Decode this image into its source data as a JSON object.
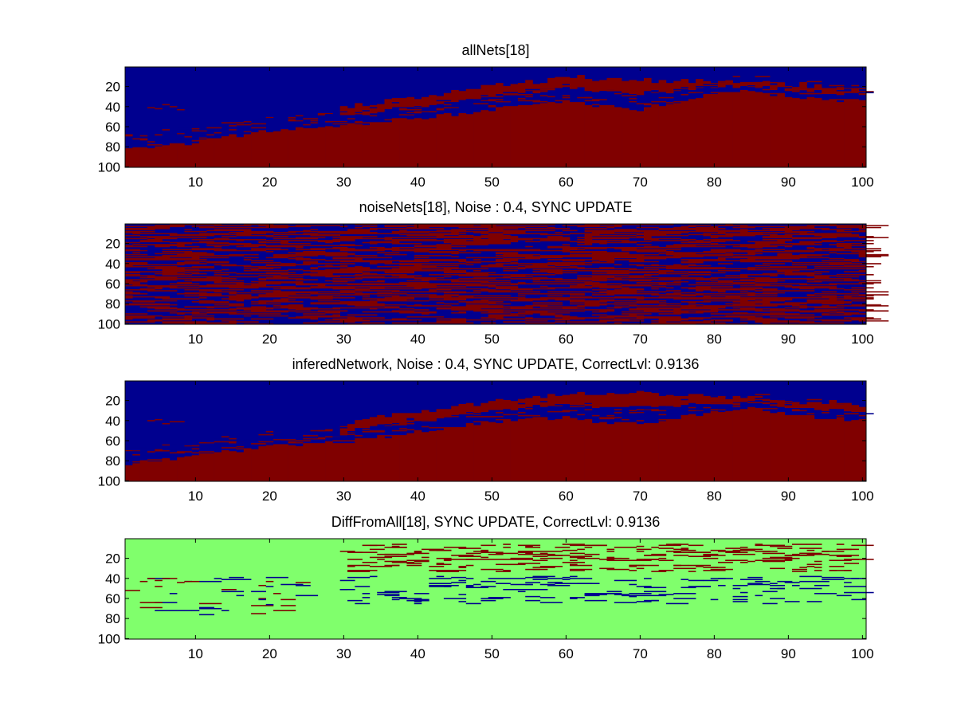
{
  "figure": {
    "background": "#ffffff"
  },
  "chart_data": [
    {
      "type": "heatmap",
      "title": "allNets[18]",
      "xlim": [
        0.5,
        100.5
      ],
      "ylim": [
        100.5,
        0.5
      ],
      "x_ticks": [
        10,
        20,
        30,
        40,
        50,
        60,
        70,
        80,
        90,
        100
      ],
      "y_ticks": [
        20,
        40,
        60,
        80,
        100
      ],
      "grid": false,
      "pattern": "boundary",
      "background_color": "#00008f",
      "value_color": "#800000",
      "boundary": [
        [
          1,
          82
        ],
        [
          10,
          76
        ],
        [
          20,
          64
        ],
        [
          30,
          60
        ],
        [
          40,
          52
        ],
        [
          50,
          44
        ],
        [
          55,
          38
        ],
        [
          60,
          36
        ],
        [
          65,
          40
        ],
        [
          70,
          43
        ],
        [
          75,
          36
        ],
        [
          80,
          28
        ],
        [
          85,
          25
        ],
        [
          90,
          30
        ],
        [
          95,
          34
        ],
        [
          100,
          35
        ]
      ],
      "upper_band": [
        [
          30,
          42
        ],
        [
          40,
          30
        ],
        [
          50,
          20
        ],
        [
          60,
          12
        ],
        [
          70,
          14
        ],
        [
          80,
          16
        ],
        [
          90,
          18
        ],
        [
          100,
          22
        ]
      ]
    },
    {
      "type": "heatmap",
      "title": "noiseNets[18], Noise : 0.4, SYNC UPDATE",
      "xlim": [
        0.5,
        100.5
      ],
      "ylim": [
        100.5,
        0.5
      ],
      "x_ticks": [
        10,
        20,
        30,
        40,
        50,
        60,
        70,
        80,
        90,
        100
      ],
      "y_ticks": [
        20,
        40,
        60,
        80,
        100
      ],
      "grid": false,
      "pattern": "noise",
      "background_color": "#00008f",
      "value_color": "#800000",
      "noise_level": 0.4
    },
    {
      "type": "heatmap",
      "title": "inferedNetwork, Noise : 0.4, SYNC UPDATE, CorrectLvl: 0.9136",
      "xlim": [
        0.5,
        100.5
      ],
      "ylim": [
        100.5,
        0.5
      ],
      "x_ticks": [
        10,
        20,
        30,
        40,
        50,
        60,
        70,
        80,
        90,
        100
      ],
      "y_ticks": [
        20,
        40,
        60,
        80,
        100
      ],
      "grid": false,
      "pattern": "boundary",
      "background_color": "#00008f",
      "value_color": "#800000",
      "boundary": [
        [
          1,
          84
        ],
        [
          10,
          76
        ],
        [
          20,
          66
        ],
        [
          30,
          62
        ],
        [
          40,
          52
        ],
        [
          50,
          42
        ],
        [
          55,
          38
        ],
        [
          60,
          38
        ],
        [
          65,
          42
        ],
        [
          70,
          44
        ],
        [
          75,
          38
        ],
        [
          80,
          32
        ],
        [
          85,
          28
        ],
        [
          90,
          34
        ],
        [
          95,
          38
        ],
        [
          100,
          40
        ]
      ],
      "upper_band": [
        [
          30,
          44
        ],
        [
          40,
          32
        ],
        [
          50,
          22
        ],
        [
          60,
          12
        ],
        [
          70,
          12
        ],
        [
          80,
          16
        ],
        [
          90,
          20
        ],
        [
          100,
          24
        ]
      ]
    },
    {
      "type": "heatmap",
      "title": "DiffFromAll[18], SYNC UPDATE, CorrectLvl: 0.9136",
      "xlim": [
        0.5,
        100.5
      ],
      "ylim": [
        100.5,
        0.5
      ],
      "x_ticks": [
        10,
        20,
        30,
        40,
        50,
        60,
        70,
        80,
        90,
        100
      ],
      "y_ticks": [
        20,
        40,
        60,
        80,
        100
      ],
      "grid": false,
      "pattern": "diff",
      "background_color": "#80ff6c",
      "positive_color": "#800000",
      "negative_color": "#00008f",
      "correct_level": 0.9136
    }
  ]
}
